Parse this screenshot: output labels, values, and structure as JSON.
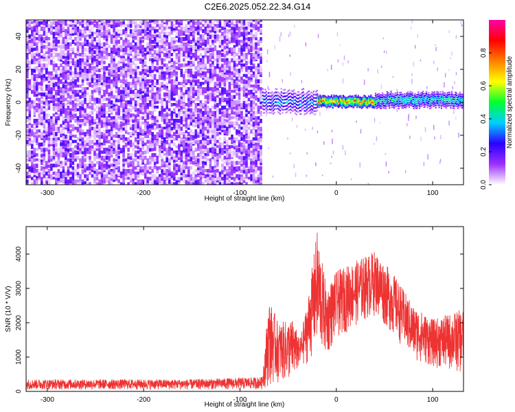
{
  "figure_title": "C2E6.2025.052.22.34.G14",
  "chart_data": [
    {
      "type": "heatmap",
      "xlabel": "Height of straight line (km)",
      "ylabel": "Frequency (Hz)",
      "xlim": [
        -322,
        132
      ],
      "ylim": [
        -50,
        50
      ],
      "x_ticks": [
        -300,
        -200,
        -100,
        0,
        100
      ],
      "y_ticks": [
        -40,
        -20,
        0,
        20,
        40
      ],
      "colorbar": {
        "label": "Normalized spectral amplitude",
        "range": [
          0,
          1
        ],
        "ticks": [
          "0.0",
          "0.2",
          "0.4",
          "0.6",
          "0.8"
        ],
        "colors": [
          "#ffffff",
          "#9b30ff",
          "#2b00ff",
          "#00d0ff",
          "#00ff30",
          "#ffff00",
          "#ff8000",
          "#ff0000",
          "#ff00aa"
        ]
      },
      "regions": [
        {
          "x_range": [
            -322,
            -77
          ],
          "freq_range": [
            -50,
            50
          ],
          "amplitude": 0.08,
          "description_type": "broadband-noise"
        },
        {
          "x_range": [
            -77,
            -20
          ],
          "freq_center": 0,
          "freq_halfwidth": 6,
          "amplitude": 0.35
        },
        {
          "x_range": [
            -20,
            40
          ],
          "freq_center": 0,
          "freq_halfwidth": 3,
          "amplitude": 0.75
        },
        {
          "x_range": [
            40,
            132
          ],
          "freq_center": 1,
          "freq_halfwidth": 4,
          "amplitude": 0.45
        }
      ]
    },
    {
      "type": "line",
      "xlabel": "Height of straight line (km)",
      "ylabel": "SNR (10 * V/V)",
      "xlim": [
        -322,
        132
      ],
      "ylim": [
        0,
        4800
      ],
      "x_ticks": [
        -300,
        -200,
        -100,
        0,
        100
      ],
      "y_ticks": [
        0,
        1000,
        2000,
        3000,
        4000
      ],
      "series": [
        {
          "color": "#ee3333",
          "envelope": [
            {
              "x": -322,
              "low": 50,
              "high": 350
            },
            {
              "x": -150,
              "low": 50,
              "high": 350
            },
            {
              "x": -77,
              "low": 60,
              "high": 420
            },
            {
              "x": -70,
              "low": 150,
              "high": 2700
            },
            {
              "x": -60,
              "low": 250,
              "high": 2000
            },
            {
              "x": -45,
              "low": 300,
              "high": 2100
            },
            {
              "x": -38,
              "low": 700,
              "high": 1500
            },
            {
              "x": -30,
              "low": 800,
              "high": 2600
            },
            {
              "x": -20,
              "low": 1200,
              "high": 4700
            },
            {
              "x": -10,
              "low": 1000,
              "high": 3000
            },
            {
              "x": 0,
              "low": 1500,
              "high": 3500
            },
            {
              "x": 20,
              "low": 1900,
              "high": 3800
            },
            {
              "x": 40,
              "low": 2200,
              "high": 4100
            },
            {
              "x": 60,
              "low": 1600,
              "high": 3400
            },
            {
              "x": 80,
              "low": 900,
              "high": 2500
            },
            {
              "x": 100,
              "low": 700,
              "high": 2100
            },
            {
              "x": 132,
              "low": 500,
              "high": 2400
            }
          ]
        }
      ]
    }
  ]
}
